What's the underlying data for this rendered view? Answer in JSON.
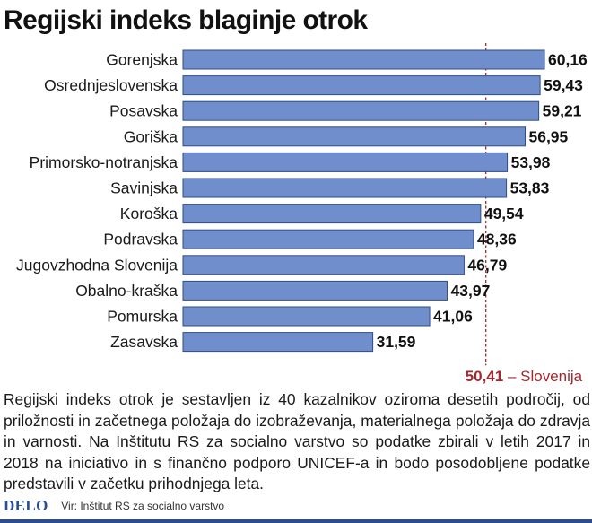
{
  "title": "Regijski indeks blaginje otrok",
  "chart_data": {
    "type": "bar",
    "orientation": "horizontal",
    "title": "Regijski indeks blaginje otrok",
    "categories": [
      "Gorenjska",
      "Osrednjeslovenska",
      "Posavska",
      "Goriška",
      "Primorsko-notranjska",
      "Savinjska",
      "Koroška",
      "Podravska",
      "Jugovzhodna Slovenija",
      "Obalno-kraška",
      "Pomurska",
      "Zasavska"
    ],
    "values": [
      60.16,
      59.43,
      59.21,
      56.95,
      53.98,
      53.83,
      49.54,
      48.36,
      46.79,
      43.97,
      41.06,
      31.59
    ],
    "value_labels": [
      "60,16",
      "59,43",
      "59,21",
      "56,95",
      "53,98",
      "53,83",
      "49,54",
      "48,36",
      "46,79",
      "43,97",
      "41,06",
      "31,59"
    ],
    "reference": {
      "value": 50.41,
      "value_label": "50,41",
      "text": "– Slovenija",
      "style": "dashed"
    },
    "xlim": [
      0,
      60.16
    ],
    "grid": false,
    "colors": {
      "bar": "#6f8ecb",
      "bar_stroke": "#2f4d86",
      "reference": "#a6282f"
    }
  },
  "description": "Regijski indeks otrok je sestavljen iz 40 kazalnikov oziroma desetih področij, od priložnosti in začetnega položaja do izobraževanja, materialnega položaja do zdravja in varnosti. Na Inštitutu RS za socialno varstvo so podatke zbirali v letih 2017 in 2018 na iniciativo in s finančno podporo UNICEF-a in bodo posodobljene podatke predstavili v začetku prihodnjega leta.",
  "footer": {
    "logo": "DELO",
    "source": "Vir: Inštitut RS za socialno varstvo"
  }
}
